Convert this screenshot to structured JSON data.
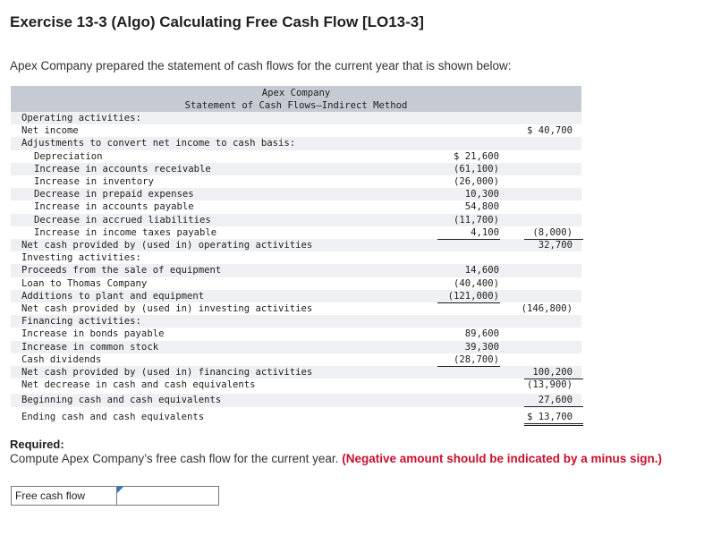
{
  "title": "Exercise 13-3 (Algo) Calculating Free Cash Flow [LO13-3]",
  "intro": "Apex Company prepared the statement of cash flows for the current year that is shown below:",
  "statement": {
    "company": "Apex Company",
    "name": "Statement of Cash Flows—Indirect Method",
    "rows": [
      {
        "label": "Operating activities:",
        "indent": false,
        "c1": "",
        "c2": ""
      },
      {
        "label": "Net income",
        "indent": false,
        "c1": "",
        "c2": "$ 40,700"
      },
      {
        "label": "Adjustments to convert net income to cash basis:",
        "indent": false,
        "c1": "",
        "c2": ""
      },
      {
        "label": "Depreciation",
        "indent": true,
        "c1": "$ 21,600",
        "c2": ""
      },
      {
        "label": "Increase in accounts receivable",
        "indent": true,
        "c1": "(61,100)",
        "c2": ""
      },
      {
        "label": "Increase in inventory",
        "indent": true,
        "c1": "(26,000)",
        "c2": ""
      },
      {
        "label": "Decrease in prepaid expenses",
        "indent": true,
        "c1": "10,300",
        "c2": ""
      },
      {
        "label": "Increase in accounts payable",
        "indent": true,
        "c1": "54,800",
        "c2": ""
      },
      {
        "label": "Decrease in accrued liabilities",
        "indent": true,
        "c1": "(11,700)",
        "c2": ""
      },
      {
        "label": "Increase in income taxes payable",
        "indent": true,
        "c1": "4,100",
        "c2": "(8,000)"
      },
      {
        "label": "Net cash provided by (used in) operating activities",
        "indent": false,
        "c1": "",
        "c2": "32,700"
      },
      {
        "label": "Investing activities:",
        "indent": false,
        "c1": "",
        "c2": ""
      },
      {
        "label": "Proceeds from the sale of equipment",
        "indent": false,
        "c1": "14,600",
        "c2": ""
      },
      {
        "label": "Loan to Thomas Company",
        "indent": false,
        "c1": "(40,400)",
        "c2": ""
      },
      {
        "label": "Additions to plant and equipment",
        "indent": false,
        "c1": "(121,000)",
        "c2": ""
      },
      {
        "label": "Net cash provided by (used in) investing activities",
        "indent": false,
        "c1": "",
        "c2": "(146,800)"
      },
      {
        "label": "Financing activities:",
        "indent": false,
        "c1": "",
        "c2": ""
      },
      {
        "label": "Increase in bonds payable",
        "indent": false,
        "c1": "89,600",
        "c2": ""
      },
      {
        "label": "Increase in common stock",
        "indent": false,
        "c1": "39,300",
        "c2": ""
      },
      {
        "label": "Cash dividends",
        "indent": false,
        "c1": "(28,700)",
        "c2": ""
      },
      {
        "label": "Net cash provided by (used in) financing activities",
        "indent": false,
        "c1": "",
        "c2": "100,200"
      },
      {
        "label": "Net decrease in cash and cash equivalents",
        "indent": false,
        "c1": "",
        "c2": "(13,900)"
      },
      {
        "label": "Beginning cash and cash equivalents",
        "indent": false,
        "c1": "",
        "c2": "27,600"
      },
      {
        "label": "Ending cash and cash equivalents",
        "indent": false,
        "c1": "",
        "c2": "$ 13,700"
      }
    ]
  },
  "required": {
    "heading": "Required:",
    "text": "Compute Apex Company’s free cash flow for the current year.",
    "note": "(Negative amount should be indicated by a minus sign.)"
  },
  "answer": {
    "label": "Free cash flow",
    "value": ""
  }
}
